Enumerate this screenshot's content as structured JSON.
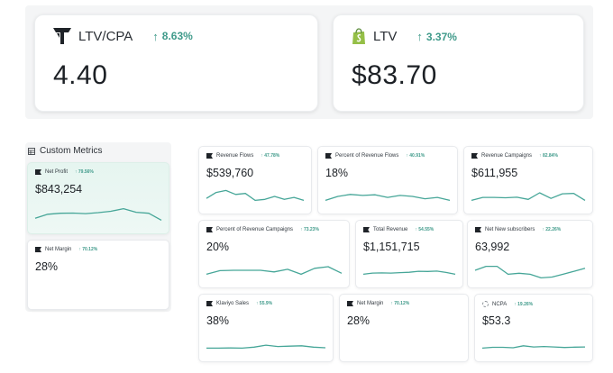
{
  "kpis": [
    {
      "label": "LTV/CPA",
      "delta": "8.63%",
      "value": "4.40",
      "icon": "tripleshot-logo-icon"
    },
    {
      "label": "LTV",
      "delta": "3.37%",
      "value": "$83.70",
      "icon": "shopify-bag-icon"
    }
  ],
  "custom_metrics": {
    "title": "Custom Metrics",
    "cards": [
      {
        "label": "Net Profit",
        "delta": "79.56%",
        "value": "$843,254",
        "series": [
          4,
          6,
          6.5,
          6.6,
          6.3,
          6.8,
          7.5,
          8.8,
          7,
          6.5,
          3
        ]
      },
      {
        "label": "Net Margin",
        "delta": "70.12%",
        "value": "28%",
        "series": []
      }
    ]
  },
  "grid": [
    {
      "label": "Revenue Flows",
      "delta": "47.78%",
      "value": "$539,760",
      "icon": "flag-icon",
      "series": [
        4,
        7,
        8,
        6,
        6.5,
        3,
        3.5,
        5,
        3.5,
        4.5,
        3
      ]
    },
    {
      "label": "Percent of Revenue Flows",
      "delta": "40.91%",
      "value": "18%",
      "icon": "flag-icon",
      "series": [
        3,
        5,
        6,
        5.5,
        5.8,
        4.5,
        5.5,
        5,
        3.8,
        4.5,
        3
      ]
    },
    {
      "label": "Revenue Campaigns",
      "delta": "82.84%",
      "value": "$611,955",
      "icon": "flag-icon",
      "series": [
        3,
        4.5,
        4.5,
        4.3,
        4.6,
        3.5,
        6.8,
        4,
        6.3,
        6.5,
        3
      ]
    },
    {
      "label": "Percent of Revenue Campaigns",
      "delta": "73.23%",
      "value": "20%",
      "icon": "flag-icon",
      "series": [
        3,
        4.8,
        5,
        5,
        5,
        4.2,
        5.5,
        3,
        6,
        6.8,
        3.5
      ]
    },
    {
      "label": "Total Revenue",
      "delta": "54.55%",
      "value": "$1,151,715",
      "icon": "flag-icon",
      "series": [
        3,
        3.6,
        3.7,
        3.6,
        3.8,
        4,
        4.5,
        4.4,
        4.6,
        3.9,
        3
      ]
    },
    {
      "label": "Net New subscribers",
      "delta": "22.26%",
      "value": "63,992",
      "icon": "flag-icon",
      "series": [
        5,
        7,
        7,
        3,
        3.5,
        3,
        1.2,
        1.6,
        3,
        4.5,
        6
      ]
    },
    {
      "label": "Klaviyo Sales",
      "delta": "55.9%",
      "value": "38%",
      "icon": "flag-icon",
      "series": [
        3,
        3,
        3.1,
        3,
        3.5,
        4.5,
        3.8,
        4,
        4.2,
        3.5,
        3.2
      ]
    },
    {
      "label": "Net Margin",
      "delta": "70.12%",
      "value": "28%",
      "icon": "flag-icon",
      "series": []
    },
    {
      "label": "NCPA",
      "delta": "19.26%",
      "value": "$53.3",
      "icon": "ncpa-dashed-icon",
      "series": [
        3,
        3.4,
        3.4,
        3.2,
        4.2,
        3.6,
        3.8,
        3.6,
        3.3,
        3.5,
        3.6
      ]
    }
  ],
  "colors": {
    "accent": "#3f9a8a",
    "line": "#46a698"
  }
}
